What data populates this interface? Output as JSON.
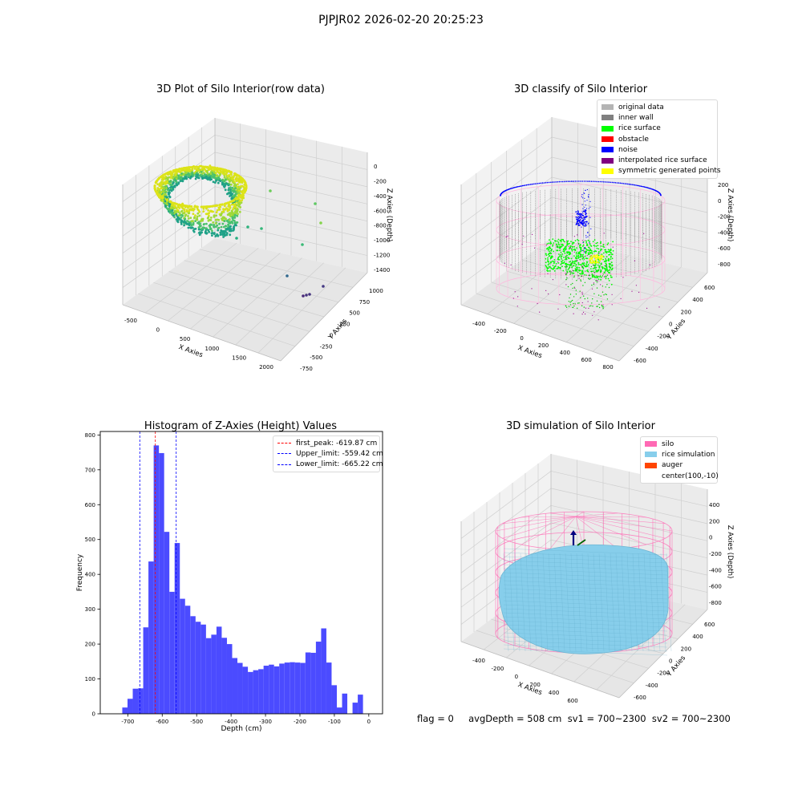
{
  "suptitle": "PJPJR02 2026-02-20 20:25:23",
  "status_line": "flag = 0     avgDepth = 508 cm  sv1 = 700~2300  sv2 = 700~2300",
  "chart_data": [
    {
      "type": "scatter3d",
      "title": "3D Plot of Silo Interior(row data)",
      "xlabel": "X Axies",
      "ylabel": "Y Axies",
      "zlabel": "Z Axies (Depth)",
      "x_ticks": [
        "-500",
        "0",
        "500",
        "1000",
        "1500",
        "2000"
      ],
      "y_ticks": [
        "-750",
        "-500",
        "-250",
        "0",
        "250",
        "500",
        "750",
        "1000"
      ],
      "z_ticks": [
        "0",
        "-200",
        "-400",
        "-600",
        "-800",
        "-1000",
        "-1200",
        "-1400"
      ],
      "colormap": "viridis"
    },
    {
      "type": "scatter3d",
      "title": "3D classify of Silo Interior",
      "xlabel": "X Axies",
      "ylabel": "Y Axies",
      "zlabel": "Z Axies (Depth)",
      "x_ticks": [
        "-400",
        "-200",
        "0",
        "200",
        "400",
        "600",
        "800"
      ],
      "y_ticks": [
        "-600",
        "-400",
        "-200",
        "0",
        "200",
        "400",
        "600"
      ],
      "z_ticks": [
        "200",
        "0",
        "-200",
        "-400",
        "-600",
        "-800"
      ],
      "legend": [
        {
          "label": "original data",
          "color": "#b4b4b4"
        },
        {
          "label": "inner wall",
          "color": "#808080"
        },
        {
          "label": "rice surface",
          "color": "#00ff00"
        },
        {
          "label": "obstacle",
          "color": "#ff0000"
        },
        {
          "label": "noise",
          "color": "#0000ff"
        },
        {
          "label": "interpolated rice surface",
          "color": "#800080"
        },
        {
          "label": "symmetric generated points",
          "color": "#ffff00"
        }
      ]
    },
    {
      "type": "bar",
      "title": "Histogram of Z-Axies (Height) Values",
      "xlabel": "Depth (cm)",
      "ylabel": "Frequency",
      "bar_color": "#4b4bff",
      "bin_width": 15.2,
      "bin_starts": [
        -716,
        -700.8,
        -685.6,
        -670.4,
        -655.2,
        -640,
        -624.8,
        -609.6,
        -594.4,
        -579.2,
        -564,
        -548.8,
        -533.6,
        -518.4,
        -503.2,
        -488,
        -472.8,
        -457.6,
        -442.4,
        -427.2,
        -412,
        -396.8,
        -381.6,
        -366.4,
        -351.2,
        -336,
        -320.8,
        -305.6,
        -290.4,
        -275.2,
        -260,
        -244.8,
        -229.6,
        -214.4,
        -199.2,
        -184,
        -168.8,
        -153.6,
        -138.4,
        -123.2,
        -108,
        -92.8,
        -77.6,
        -62.4,
        -47.2,
        -32,
        -16.8
      ],
      "values": [
        18,
        43,
        72,
        73,
        248,
        437,
        770,
        748,
        522,
        350,
        490,
        330,
        310,
        280,
        264,
        256,
        217,
        227,
        250,
        218,
        200,
        160,
        146,
        135,
        120,
        125,
        128,
        138,
        141,
        136,
        144,
        147,
        148,
        147,
        146,
        176,
        175,
        207,
        245,
        147,
        82,
        18,
        58,
        0,
        32,
        55,
        0
      ],
      "xlim": [
        -780,
        40
      ],
      "ylim": [
        0,
        810
      ],
      "x_ticks": [
        -700,
        -600,
        -500,
        -400,
        -300,
        -200,
        -100,
        0
      ],
      "y_ticks": [
        0,
        100,
        200,
        300,
        400,
        500,
        600,
        700,
        800
      ],
      "vlines": [
        {
          "label": "first_peak: -619.87 cm",
          "value": -619.87,
          "color": "#ff0000"
        },
        {
          "label": "Upper_limit: -559.42 cm",
          "value": -559.42,
          "color": "#0000ff"
        },
        {
          "label": "Lower_limit: -665.22 cm",
          "value": -665.22,
          "color": "#0000ff"
        }
      ],
      "grid": false,
      "legend_position": "top-right"
    },
    {
      "type": "surface3d",
      "title": "3D simulation of Silo Interior",
      "xlabel": "X Axies",
      "ylabel": "Y Axies",
      "zlabel": "Z Axies (Depth)",
      "x_ticks": [
        "-400",
        "-200",
        "0",
        "200",
        "400",
        "600"
      ],
      "y_ticks": [
        "-600",
        "-400",
        "-200",
        "0",
        "200",
        "400",
        "600"
      ],
      "z_ticks": [
        "400",
        "200",
        "0",
        "-200",
        "-400",
        "-600",
        "-800"
      ],
      "legend": [
        {
          "label": "silo",
          "color": "#ff69b4"
        },
        {
          "label": "rice simulation",
          "color": "#87ceeb"
        },
        {
          "label": "auger",
          "color": "#ff4500"
        },
        {
          "label": "center(100,-10)",
          "color": ""
        }
      ]
    }
  ]
}
